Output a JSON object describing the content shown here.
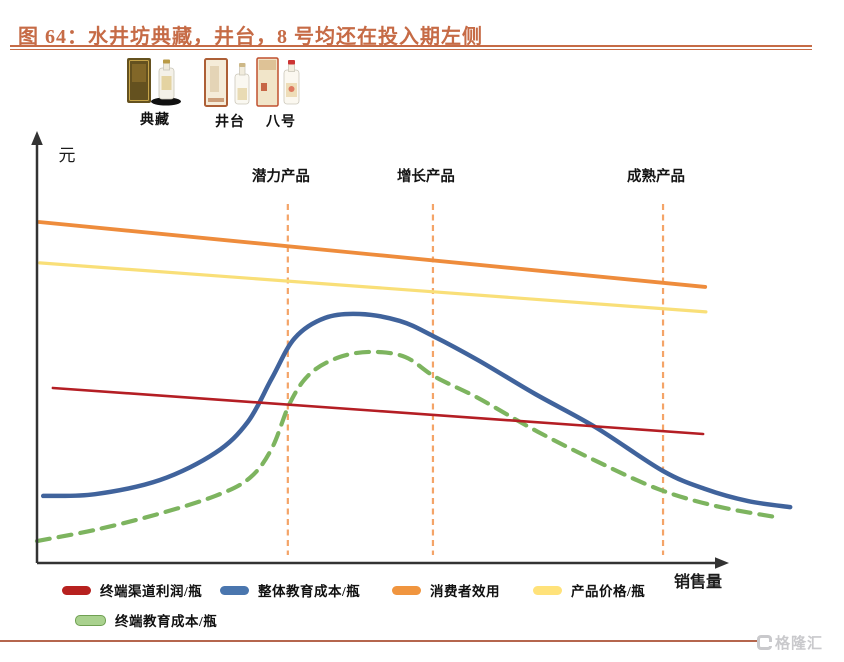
{
  "header": {
    "title": "图 64：水井坊典藏，井台，8 号均还在投入期左侧",
    "title_color": "#C66B46"
  },
  "products": [
    {
      "name": "典藏"
    },
    {
      "name": "井台"
    },
    {
      "name": "八号"
    }
  ],
  "legend": {
    "items": [
      {
        "label": "终端渠道利润/瓶",
        "color": "#B7211F"
      },
      {
        "label": "整体教育成本/瓶",
        "color": "#4A76AE"
      },
      {
        "label": "消费者效用",
        "color": "#F0953F"
      },
      {
        "label": "产品价格/瓶",
        "color": "#FFE27A"
      },
      {
        "label": "终端教育成本/瓶",
        "color": "#A9D18E",
        "border": "#6FA052"
      }
    ]
  },
  "footer": {
    "rule_color": "#B5664D",
    "watermark": "格隆汇",
    "watermark_color": "#C9C9CC"
  },
  "chart_data": {
    "type": "line",
    "title": "",
    "xlabel": "销售量",
    "ylabel": "元",
    "axis_numeric": false,
    "note": "Conceptual product life-cycle chart; no numeric ticks. Coordinates are relative scales: x = sales volume 0-110, y = yuan 0-100.",
    "legend_position": "bottom",
    "grid": false,
    "stages": [
      {
        "label": "潜力产品",
        "x": 36.3
      },
      {
        "label": "增长产品",
        "x": 57.3
      },
      {
        "label": "成熟产品",
        "x": 90.6
      }
    ],
    "stage_line_color": "#F4A468",
    "series": [
      {
        "name": "消费者效用",
        "color": "#EE8C3C",
        "style": "solid",
        "width": 3.8,
        "points": [
          [
            0.3,
            79.3
          ],
          [
            96.7,
            64.2
          ]
        ]
      },
      {
        "name": "产品价格/瓶",
        "color": "#F9DF78",
        "style": "solid",
        "width": 3.2,
        "points": [
          [
            0.4,
            69.8
          ],
          [
            96.8,
            58.4
          ]
        ]
      },
      {
        "name": "整体教育成本/瓶",
        "color": "#40639C",
        "style": "solid",
        "width": 4.5,
        "points": [
          [
            0.9,
            15.6
          ],
          [
            8.4,
            16.0
          ],
          [
            17.8,
            19.3
          ],
          [
            25.8,
            25.6
          ],
          [
            30.5,
            32.8
          ],
          [
            34.0,
            43.0
          ],
          [
            37.3,
            52.3
          ],
          [
            41.7,
            57.0
          ],
          [
            46.7,
            57.9
          ],
          [
            52.5,
            56.3
          ],
          [
            57.3,
            52.8
          ],
          [
            63.8,
            47.2
          ],
          [
            72.1,
            39.3
          ],
          [
            80.8,
            31.6
          ],
          [
            90.6,
            21.4
          ],
          [
            96.7,
            17.2
          ],
          [
            102.9,
            14.4
          ],
          [
            109.0,
            13.0
          ]
        ]
      },
      {
        "name": "终端教育成本/瓶",
        "color": "#7DB45F",
        "style": "dashed",
        "width": 4.2,
        "points": [
          [
            0.0,
            5.1
          ],
          [
            8.4,
            7.7
          ],
          [
            17.1,
            11.2
          ],
          [
            25.8,
            15.6
          ],
          [
            30.8,
            19.8
          ],
          [
            34.0,
            26.7
          ],
          [
            36.6,
            37.2
          ],
          [
            39.5,
            44.0
          ],
          [
            43.8,
            47.9
          ],
          [
            48.5,
            49.1
          ],
          [
            53.3,
            47.9
          ],
          [
            57.6,
            43.3
          ],
          [
            63.8,
            38.4
          ],
          [
            72.5,
            30.5
          ],
          [
            81.2,
            23.5
          ],
          [
            89.9,
            17.2
          ],
          [
            98.1,
            13.3
          ],
          [
            106.8,
            10.7
          ]
        ]
      },
      {
        "name": "终端渠道利润/瓶",
        "color": "#B41E24",
        "style": "solid",
        "width": 2.6,
        "points": [
          [
            2.3,
            40.7
          ],
          [
            96.4,
            30.0
          ]
        ]
      }
    ]
  }
}
